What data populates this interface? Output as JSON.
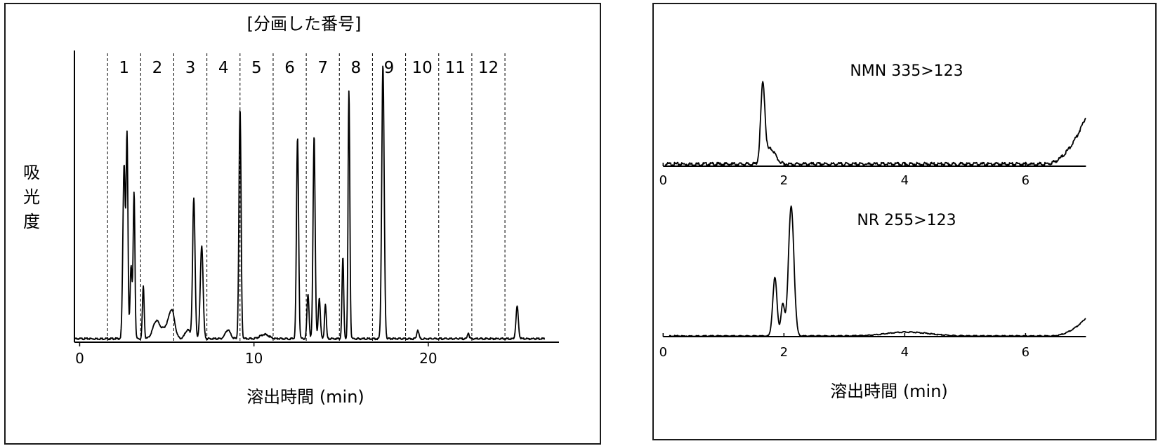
{
  "charts": [
    {
      "id": "fractionation",
      "type": "line",
      "title": "[分画した番号]",
      "xlabel": "溶出時間 (min)",
      "ylabel_chars": [
        "吸",
        "光",
        "度"
      ],
      "xlim": [
        -0.3,
        27.5
      ],
      "ylim": [
        0,
        1
      ],
      "xticks": [
        0,
        10,
        20
      ],
      "fractions": {
        "labels": [
          "1",
          "2",
          "3",
          "4",
          "5",
          "6",
          "7",
          "8",
          "9",
          "10",
          "11",
          "12"
        ],
        "boundaries": [
          1.6,
          3.5,
          5.4,
          7.3,
          9.2,
          11.1,
          13.0,
          14.9,
          16.8,
          18.7,
          20.6,
          22.5,
          24.4
        ]
      },
      "baseline": 0.012,
      "peaks": [
        [
          2.55,
          0.6,
          0.07
        ],
        [
          2.72,
          0.68,
          0.05
        ],
        [
          2.95,
          0.25,
          0.06
        ],
        [
          3.12,
          0.5,
          0.05
        ],
        [
          3.65,
          0.18,
          0.05
        ],
        [
          4.4,
          0.06,
          0.2
        ],
        [
          5.3,
          0.08,
          0.16
        ],
        [
          5.0,
          0.04,
          0.25
        ],
        [
          6.2,
          0.03,
          0.15
        ],
        [
          6.55,
          0.48,
          0.07
        ],
        [
          7.0,
          0.32,
          0.08
        ],
        [
          8.5,
          0.03,
          0.15
        ],
        [
          9.2,
          0.79,
          0.06
        ],
        [
          10.6,
          0.015,
          0.25
        ],
        [
          12.5,
          0.69,
          0.06
        ],
        [
          13.1,
          0.15,
          0.06
        ],
        [
          13.45,
          0.7,
          0.06
        ],
        [
          13.75,
          0.14,
          0.06
        ],
        [
          14.1,
          0.12,
          0.05
        ],
        [
          15.1,
          0.28,
          0.05
        ],
        [
          15.45,
          0.85,
          0.05
        ],
        [
          17.4,
          0.94,
          0.07
        ],
        [
          19.4,
          0.03,
          0.06
        ],
        [
          22.3,
          0.02,
          0.05
        ],
        [
          25.1,
          0.11,
          0.07
        ]
      ],
      "series": []
    },
    {
      "id": "nmn",
      "type": "line",
      "trace_label": "NMN 335>123",
      "xlim": [
        -0.05,
        7.1
      ],
      "ylim": [
        0,
        1
      ],
      "xticks": [
        0,
        2,
        4,
        6
      ],
      "baseline": 0.025,
      "peaks": [
        [
          1.65,
          0.92,
          0.035
        ],
        [
          1.78,
          0.18,
          0.08
        ]
      ],
      "rise": {
        "start": 6.3,
        "end": 7.0,
        "from": 0.05,
        "to": 0.62
      }
    },
    {
      "id": "nr",
      "type": "line",
      "trace_label": "NR 255>123",
      "xlabel": "溶出時間 (min)",
      "xlim": [
        -0.05,
        7.1
      ],
      "ylim": [
        0,
        1
      ],
      "xticks": [
        0,
        2,
        4,
        6
      ],
      "baseline": 0.005,
      "peaks": [
        [
          1.85,
          0.45,
          0.035
        ],
        [
          1.98,
          0.24,
          0.03
        ],
        [
          2.12,
          1.0,
          0.045
        ],
        [
          4.05,
          0.03,
          0.35
        ]
      ],
      "rise": {
        "start": 6.4,
        "end": 7.0,
        "from": 0.02,
        "to": 0.16
      }
    }
  ]
}
